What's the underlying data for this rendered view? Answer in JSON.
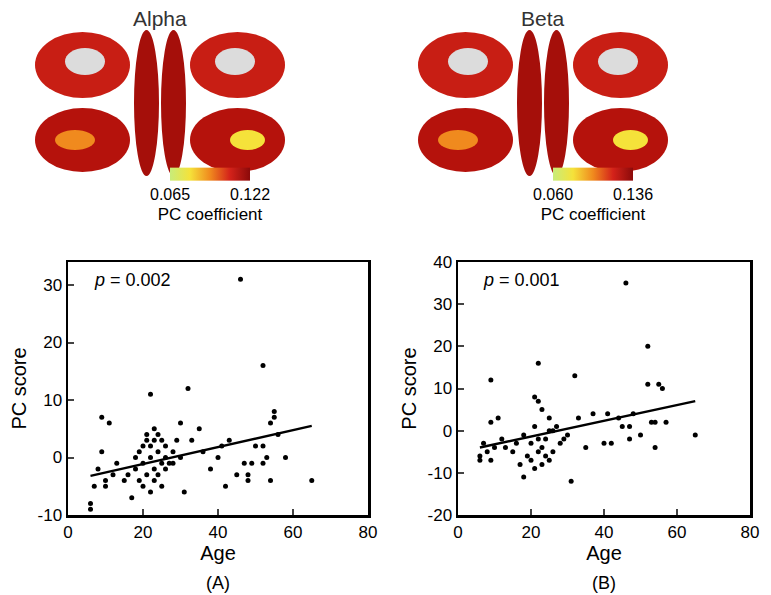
{
  "chart_data": [
    {
      "type": "scatter",
      "title": "Alpha",
      "panel_label": "(A)",
      "annotation": "p = 0.002",
      "x_label": "Age",
      "y_label": "PC score",
      "colorbar_title": "PC coefficient",
      "colorbar_range": [
        0.065,
        0.122
      ],
      "colorbar_ticks": [
        0.065,
        0.122
      ],
      "xlim": [
        0,
        80
      ],
      "xticks": [
        0,
        20,
        40,
        60,
        80
      ],
      "ylim": [
        -10,
        34
      ],
      "yticks": [
        -10,
        0,
        10,
        20,
        30
      ],
      "x": [
        6,
        6,
        7,
        8,
        9,
        9,
        10,
        10,
        11,
        12,
        13,
        15,
        16,
        17,
        18,
        18,
        19,
        19,
        20,
        20,
        20,
        21,
        21,
        21,
        22,
        22,
        22,
        22,
        23,
        23,
        23,
        23,
        24,
        24,
        24,
        25,
        25,
        25,
        26,
        26,
        26,
        27,
        28,
        28,
        29,
        30,
        30,
        31,
        32,
        33,
        35,
        36,
        38,
        40,
        41,
        42,
        43,
        45,
        46,
        47,
        48,
        48,
        49,
        50,
        52,
        52,
        52,
        53,
        54,
        54,
        55,
        55,
        56,
        58,
        65
      ],
      "values": [
        -8,
        -9,
        -5,
        -2,
        1,
        7,
        -4,
        -5,
        6,
        -3,
        -1,
        -4,
        -3,
        -7,
        -2,
        0,
        1,
        -4,
        2,
        -1,
        -5,
        3,
        -3,
        4,
        -6,
        0,
        2,
        11,
        3,
        -2,
        5,
        -4,
        1,
        -3,
        4,
        3,
        -1,
        -5,
        0,
        2,
        -2,
        -1,
        1,
        -1,
        3,
        6,
        0,
        -6,
        12,
        3,
        5,
        1,
        -2,
        0,
        2,
        -5,
        3,
        -3,
        31,
        -1,
        -3,
        -4,
        -1,
        2,
        -1,
        2,
        16,
        0,
        -4,
        6,
        8,
        7,
        4,
        0,
        -4
      ],
      "trend": {
        "x": [
          6,
          65
        ],
        "values": [
          -3.2,
          5.5
        ]
      },
      "color": "#000000",
      "marker": "circle"
    },
    {
      "type": "scatter",
      "title": "Beta",
      "panel_label": "(B)",
      "annotation": "p = 0.001",
      "x_label": "Age",
      "y_label": "PC score",
      "colorbar_title": "PC coefficient",
      "colorbar_range": [
        0.06,
        0.136
      ],
      "colorbar_ticks": [
        {
          "value": 0.06,
          "label": "0.060"
        },
        0.136
      ],
      "xlim": [
        0,
        80
      ],
      "xticks": [
        0,
        20,
        40,
        60,
        80
      ],
      "ylim": [
        -20,
        40
      ],
      "yticks": [
        -20,
        -10,
        0,
        10,
        20,
        30,
        40
      ],
      "x": [
        6,
        6,
        7,
        8,
        9,
        9,
        9,
        10,
        11,
        12,
        13,
        15,
        16,
        17,
        18,
        18,
        19,
        20,
        20,
        21,
        21,
        21,
        22,
        22,
        22,
        22,
        23,
        23,
        23,
        24,
        24,
        25,
        25,
        25,
        26,
        26,
        27,
        28,
        29,
        30,
        31,
        32,
        33,
        35,
        37,
        40,
        41,
        42,
        44,
        45,
        46,
        47,
        47,
        48,
        50,
        52,
        52,
        53,
        54,
        54,
        55,
        56,
        57,
        65
      ],
      "values": [
        -6,
        -7,
        -3,
        -5,
        -7,
        2,
        12,
        -4,
        3,
        -2,
        -4,
        -5,
        -3,
        -8,
        -1,
        -11,
        -6,
        -3,
        -7,
        1,
        8,
        -9,
        16,
        7,
        -5,
        -2,
        -8,
        -4,
        5,
        -6,
        -2,
        3,
        0,
        -7,
        -5,
        0,
        1,
        -3,
        -2,
        -1,
        -12,
        13,
        3,
        -4,
        4,
        -3,
        4,
        -3,
        3,
        1,
        35,
        -2,
        1,
        4,
        -1,
        11,
        20,
        2,
        2,
        -4,
        11,
        10,
        2,
        -1
      ],
      "trend": {
        "x": [
          6,
          65
        ],
        "values": [
          -4,
          7
        ]
      },
      "color": "#000000",
      "marker": "circle"
    }
  ]
}
